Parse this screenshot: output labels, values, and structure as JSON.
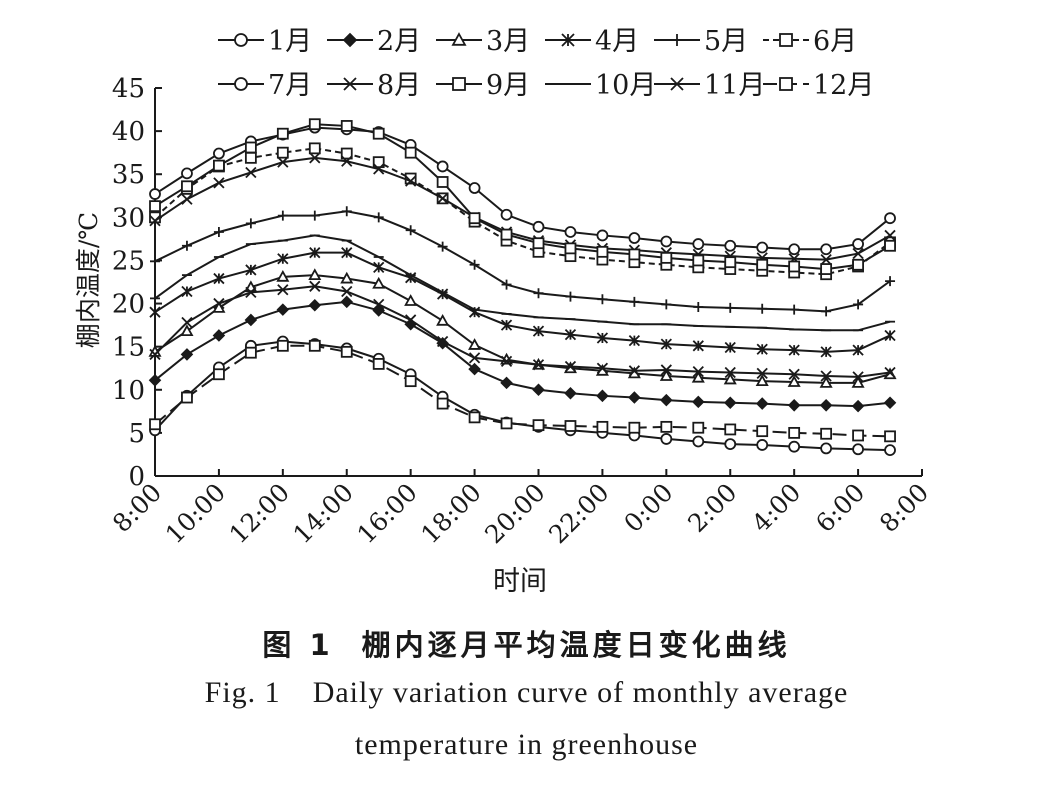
{
  "chart_data": {
    "type": "line",
    "xlabel": "时间",
    "ylabel": "棚内温度/℃",
    "ylim": [
      0,
      45
    ],
    "yticks": [
      0,
      5,
      10,
      15,
      20,
      25,
      30,
      35,
      40,
      45
    ],
    "x_hours": [
      8,
      9,
      10,
      11,
      12,
      13,
      14,
      15,
      16,
      17,
      18,
      19,
      20,
      21,
      22,
      23,
      24,
      25,
      26,
      27,
      28,
      29,
      30,
      31
    ],
    "xticks": [
      {
        "hour": 8,
        "label": "8:00"
      },
      {
        "hour": 10,
        "label": "10:00"
      },
      {
        "hour": 12,
        "label": "12:00"
      },
      {
        "hour": 14,
        "label": "14:00"
      },
      {
        "hour": 16,
        "label": "16:00"
      },
      {
        "hour": 18,
        "label": "18:00"
      },
      {
        "hour": 20,
        "label": "20:00"
      },
      {
        "hour": 22,
        "label": "22:00"
      },
      {
        "hour": 24,
        "label": "0:00"
      },
      {
        "hour": 26,
        "label": "2:00"
      },
      {
        "hour": 28,
        "label": "4:00"
      },
      {
        "hour": 30,
        "label": "6:00"
      },
      {
        "hour": 32,
        "label": "8:00"
      }
    ],
    "grid": false,
    "legend_position": "top",
    "series": [
      {
        "name": "1月",
        "marker": "circle",
        "dash": "solid",
        "values": [
          5.3,
          9.3,
          12.6,
          15.1,
          15.6,
          15.3,
          14.8,
          13.6,
          11.8,
          9.2,
          7.1,
          6.2,
          5.7,
          5.3,
          5.0,
          4.7,
          4.3,
          4.0,
          3.7,
          3.6,
          3.4,
          3.2,
          3.1,
          3.0
        ]
      },
      {
        "name": "2月",
        "marker": "diamond",
        "dash": "solid",
        "values": [
          11.1,
          14.1,
          16.3,
          18.1,
          19.3,
          19.8,
          20.2,
          19.2,
          17.6,
          15.4,
          12.4,
          10.8,
          10.0,
          9.6,
          9.3,
          9.1,
          8.8,
          8.6,
          8.5,
          8.4,
          8.2,
          8.2,
          8.1,
          8.5
        ]
      },
      {
        "name": "3月",
        "marker": "triangle",
        "dash": "solid",
        "values": [
          14.4,
          16.8,
          19.5,
          21.9,
          23.1,
          23.3,
          22.9,
          22.3,
          20.3,
          18.0,
          15.2,
          13.5,
          12.9,
          12.5,
          12.2,
          11.9,
          11.6,
          11.4,
          11.2,
          11.0,
          10.9,
          10.8,
          10.8,
          11.8
        ]
      },
      {
        "name": "4月",
        "marker": "star",
        "dash": "solid",
        "values": [
          19.0,
          21.4,
          22.9,
          23.9,
          25.2,
          25.9,
          25.9,
          24.2,
          23.0,
          21.1,
          19.0,
          17.5,
          16.8,
          16.4,
          16.0,
          15.7,
          15.3,
          15.1,
          14.9,
          14.7,
          14.6,
          14.4,
          14.6,
          16.3
        ]
      },
      {
        "name": "5月",
        "marker": "plus",
        "dash": "solid",
        "values": [
          24.9,
          26.7,
          28.3,
          29.3,
          30.2,
          30.2,
          30.7,
          30.0,
          28.5,
          26.6,
          24.5,
          22.2,
          21.2,
          20.8,
          20.5,
          20.2,
          19.9,
          19.6,
          19.5,
          19.4,
          19.3,
          19.1,
          19.9,
          22.6
        ]
      },
      {
        "name": "6月",
        "marker": "square",
        "dash": "dashed",
        "values": [
          30.0,
          33.3,
          35.9,
          36.9,
          37.5,
          38.0,
          37.4,
          36.4,
          34.5,
          32.2,
          29.5,
          27.3,
          26.0,
          25.5,
          25.1,
          24.8,
          24.5,
          24.2,
          24.0,
          23.8,
          23.6,
          23.4,
          24.3,
          27.1
        ]
      },
      {
        "name": "7月",
        "marker": "circle",
        "dash": "solid",
        "values": [
          32.7,
          35.1,
          37.4,
          38.8,
          39.6,
          40.4,
          40.2,
          39.9,
          38.4,
          35.9,
          33.4,
          30.3,
          28.9,
          28.3,
          27.9,
          27.6,
          27.2,
          26.9,
          26.7,
          26.5,
          26.3,
          26.3,
          26.9,
          29.9
        ]
      },
      {
        "name": "8月",
        "marker": "x",
        "dash": "solid",
        "values": [
          29.6,
          32.1,
          34.0,
          35.2,
          36.4,
          36.9,
          36.5,
          35.6,
          34.2,
          32.2,
          30.0,
          28.3,
          27.3,
          26.8,
          26.4,
          26.2,
          25.9,
          25.7,
          25.5,
          25.3,
          25.2,
          25.1,
          25.8,
          27.9
        ]
      },
      {
        "name": "9月",
        "marker": "square",
        "dash": "solid",
        "values": [
          31.3,
          33.6,
          36.0,
          38.1,
          39.7,
          40.8,
          40.6,
          39.7,
          37.5,
          34.1,
          29.9,
          28.0,
          27.0,
          26.4,
          26.0,
          25.7,
          25.3,
          25.0,
          24.8,
          24.5,
          24.3,
          24.0,
          24.5,
          26.7
        ]
      },
      {
        "name": "10月",
        "marker": "dash",
        "dash": "solid",
        "values": [
          20.6,
          23.3,
          25.4,
          26.9,
          27.3,
          27.9,
          27.3,
          25.4,
          23.3,
          21.3,
          19.3,
          18.8,
          18.4,
          18.2,
          17.9,
          17.6,
          17.6,
          17.4,
          17.3,
          17.2,
          17.0,
          16.9,
          16.9,
          17.9
        ]
      },
      {
        "name": "11月",
        "marker": "x",
        "dash": "solid",
        "values": [
          14.1,
          17.8,
          20.0,
          21.3,
          21.6,
          22.0,
          21.4,
          19.9,
          18.1,
          15.6,
          13.7,
          13.3,
          12.9,
          12.7,
          12.5,
          12.2,
          12.3,
          12.1,
          12.0,
          11.9,
          11.8,
          11.6,
          11.5,
          12.0
        ]
      },
      {
        "name": "12月",
        "marker": "square",
        "dash": "longdash",
        "values": [
          6.0,
          9.1,
          11.8,
          14.3,
          15.1,
          15.1,
          14.4,
          13.0,
          11.0,
          8.4,
          6.8,
          6.1,
          5.9,
          5.8,
          5.7,
          5.6,
          5.7,
          5.6,
          5.4,
          5.2,
          5.0,
          4.9,
          4.7,
          4.6
        ]
      }
    ]
  },
  "caption": {
    "cn_number": "图 1",
    "cn_title": "棚内逐月平均温度日变化曲线",
    "en_prefix": "Fig. 1",
    "en_line1": "Daily variation curve of monthly average",
    "en_line2": "temperature in greenhouse"
  }
}
